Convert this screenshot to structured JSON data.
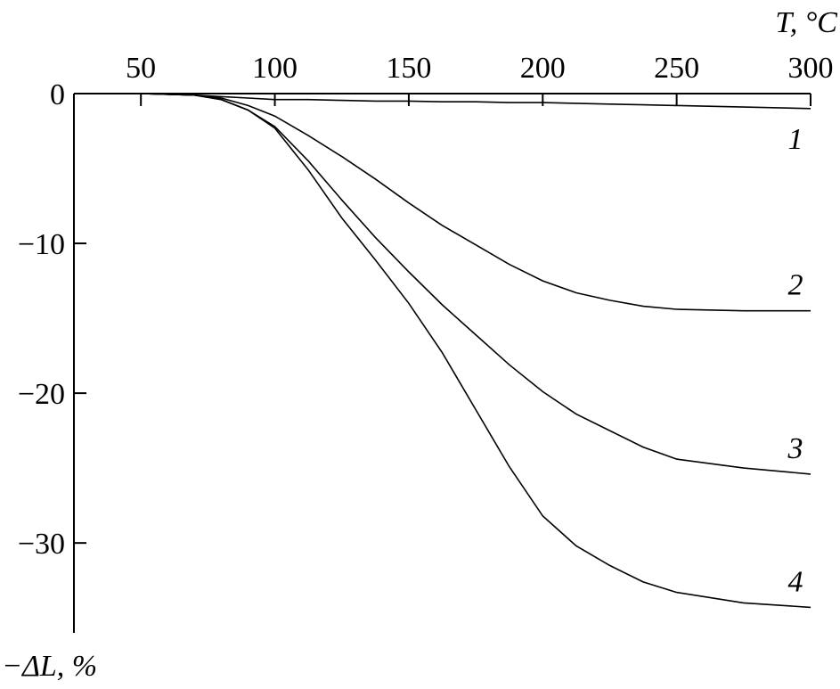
{
  "chart_data": {
    "type": "line",
    "x_label": "T, °C",
    "y_label": "−ΔL, %",
    "x": [
      25,
      50,
      70,
      80,
      90,
      100,
      112.5,
      125,
      137.5,
      150,
      162.5,
      175,
      187.5,
      200,
      212.5,
      225,
      237.5,
      250,
      275,
      300
    ],
    "series": [
      {
        "name": "1",
        "color": "#000000",
        "values": [
          0,
          0,
          -0.1,
          -0.2,
          -0.3,
          -0.4,
          -0.4,
          -0.45,
          -0.5,
          -0.5,
          -0.55,
          -0.55,
          -0.6,
          -0.6,
          -0.65,
          -0.7,
          -0.75,
          -0.8,
          -0.9,
          -1.0
        ]
      },
      {
        "name": "2",
        "color": "#000000",
        "values": [
          0,
          0,
          -0.1,
          -0.3,
          -0.8,
          -1.5,
          -2.8,
          -4.2,
          -5.7,
          -7.3,
          -8.8,
          -10.1,
          -11.4,
          -12.5,
          -13.3,
          -13.8,
          -14.2,
          -14.4,
          -14.5,
          -14.5
        ]
      },
      {
        "name": "3",
        "color": "#000000",
        "values": [
          0,
          0,
          -0.1,
          -0.4,
          -1.1,
          -2.2,
          -4.5,
          -7.1,
          -9.6,
          -11.9,
          -14.1,
          -16.1,
          -18.1,
          -19.9,
          -21.4,
          -22.5,
          -23.6,
          -24.4,
          -25.0,
          -25.4
        ]
      },
      {
        "name": "4",
        "color": "#000000",
        "values": [
          0,
          0,
          -0.1,
          -0.4,
          -1.1,
          -2.3,
          -5.1,
          -8.3,
          -11.1,
          -14.0,
          -17.3,
          -21.1,
          -24.9,
          -28.2,
          -30.2,
          -31.5,
          -32.6,
          -33.3,
          -34.0,
          -34.3
        ]
      }
    ],
    "xlim": [
      25,
      300
    ],
    "xticks": [
      50,
      100,
      150,
      200,
      250,
      300
    ],
    "ylim": [
      -36,
      0
    ],
    "yticks": [
      0,
      {
        "value": -10,
        "label": "−10"
      },
      {
        "value": -20,
        "label": "−20"
      },
      {
        "value": -30,
        "label": "−30"
      }
    ],
    "grid": false
  }
}
